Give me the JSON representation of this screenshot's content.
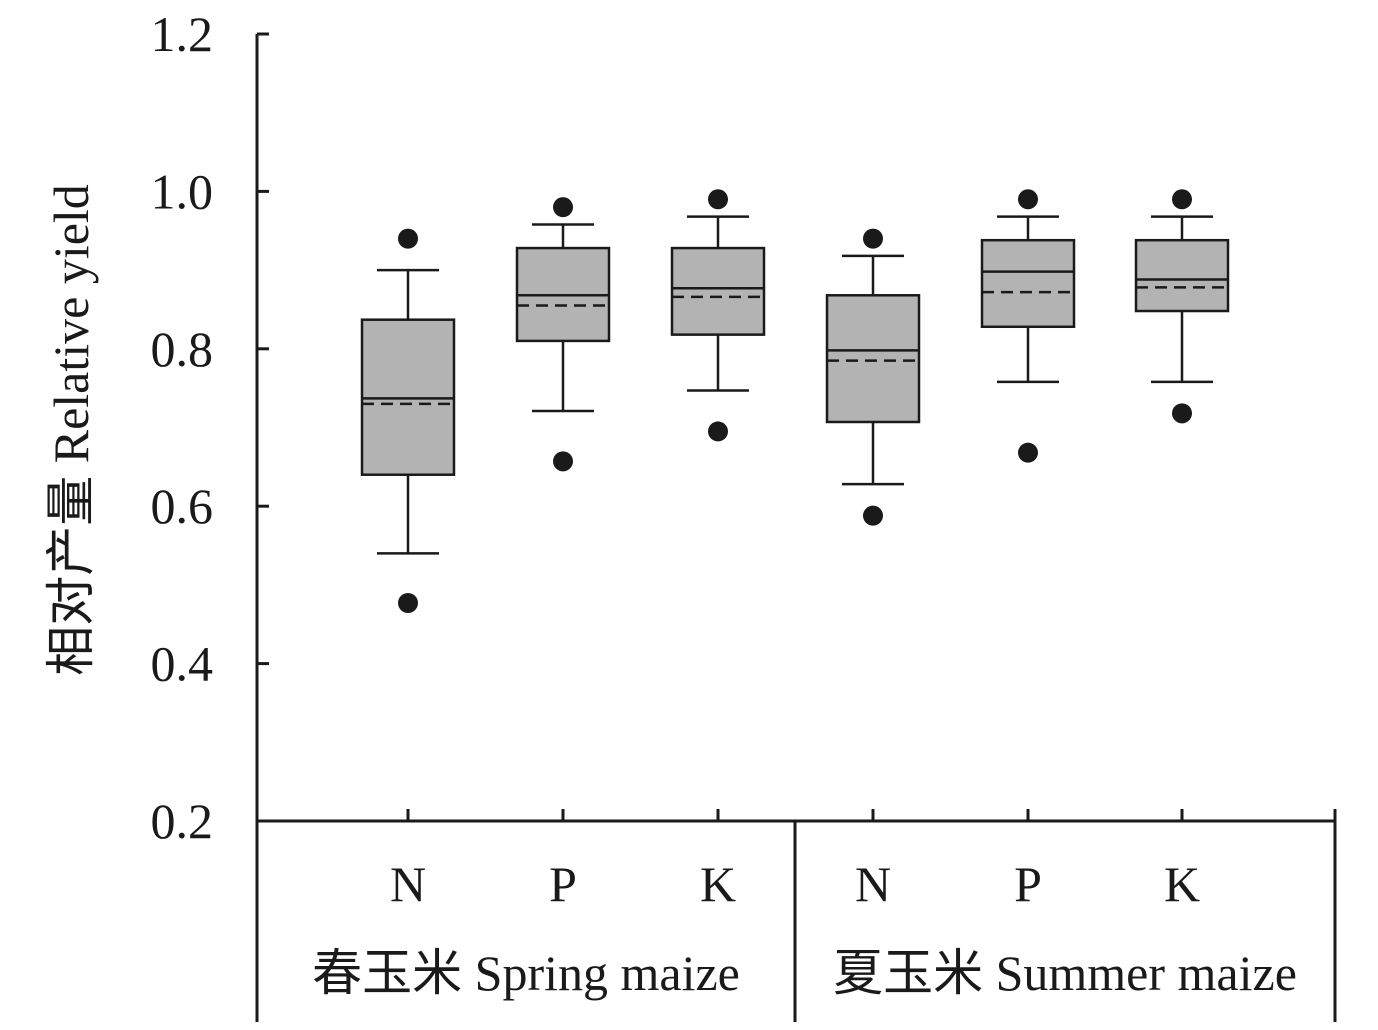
{
  "chart_data": {
    "type": "box",
    "ylabel": "相对产量 Relative yield",
    "ylim": [
      0.2,
      1.2
    ],
    "yticks": [
      0.2,
      0.4,
      0.6,
      0.8,
      1.0,
      1.2
    ],
    "ytick_labels": [
      "0.2",
      "0.4",
      "0.6",
      "0.8",
      "1.0",
      "1.2"
    ],
    "grid": false,
    "groups": [
      {
        "label": "春玉米 Spring maize",
        "categories": [
          "N",
          "P",
          "K"
        ]
      },
      {
        "label": "夏玉米 Summer maize",
        "categories": [
          "N",
          "P",
          "K"
        ]
      }
    ],
    "boxes": [
      {
        "group": 0,
        "category": "N",
        "whisker_low": 0.54,
        "q1": 0.64,
        "median": 0.737,
        "mean": 0.73,
        "q3": 0.837,
        "whisker_high": 0.9,
        "outlier_low": 0.477,
        "outlier_high": 0.94
      },
      {
        "group": 0,
        "category": "P",
        "whisker_low": 0.721,
        "q1": 0.81,
        "median": 0.868,
        "mean": 0.855,
        "q3": 0.928,
        "whisker_high": 0.958,
        "outlier_low": 0.657,
        "outlier_high": 0.98
      },
      {
        "group": 0,
        "category": "K",
        "whisker_low": 0.747,
        "q1": 0.818,
        "median": 0.877,
        "mean": 0.866,
        "q3": 0.928,
        "whisker_high": 0.968,
        "outlier_low": 0.695,
        "outlier_high": 0.99
      },
      {
        "group": 1,
        "category": "N",
        "whisker_low": 0.628,
        "q1": 0.707,
        "median": 0.798,
        "mean": 0.785,
        "q3": 0.868,
        "whisker_high": 0.918,
        "outlier_low": 0.588,
        "outlier_high": 0.94
      },
      {
        "group": 1,
        "category": "P",
        "whisker_low": 0.758,
        "q1": 0.828,
        "median": 0.898,
        "mean": 0.872,
        "q3": 0.938,
        "whisker_high": 0.968,
        "outlier_low": 0.668,
        "outlier_high": 0.99
      },
      {
        "group": 1,
        "category": "K",
        "whisker_low": 0.758,
        "q1": 0.848,
        "median": 0.888,
        "mean": 0.878,
        "q3": 0.938,
        "whisker_high": 0.968,
        "outlier_low": 0.718,
        "outlier_high": 0.99
      }
    ],
    "colors": {
      "box_fill": "#b3b3b3",
      "stroke": "#1a1a1a",
      "outlier": "#1a1a1a"
    }
  }
}
